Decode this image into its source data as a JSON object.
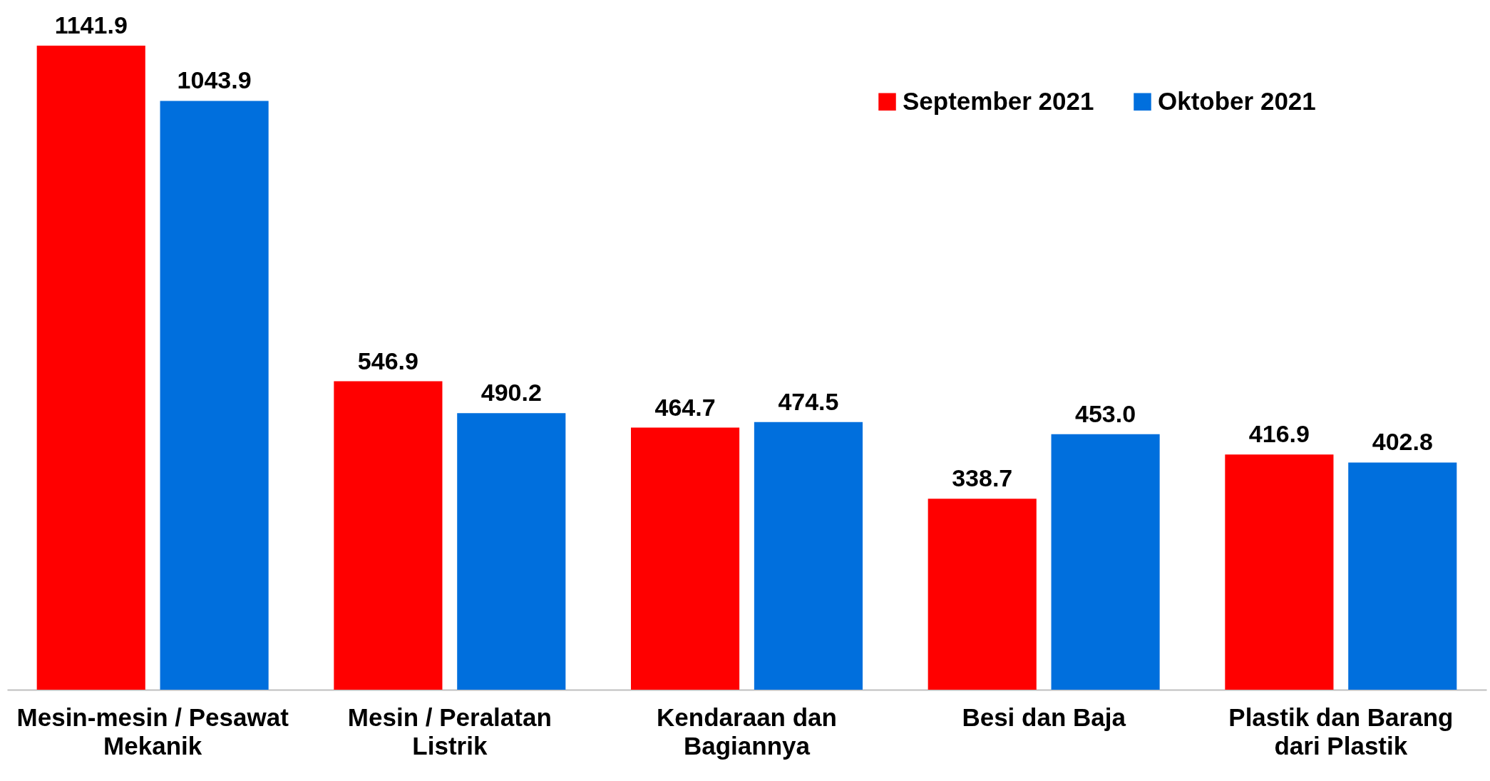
{
  "chart_data": {
    "type": "bar",
    "categories": [
      "Mesin-mesin / Pesawat Mekanik",
      "Mesin / Peralatan Listrik",
      "Kendaraan dan Bagiannya",
      "Besi dan Baja",
      "Plastik dan Barang dari Plastik"
    ],
    "series": [
      {
        "name": "September 2021",
        "color": "#ff0000",
        "values": [
          1141.9,
          546.9,
          464.7,
          338.7,
          416.9
        ],
        "value_labels": [
          "1141.9",
          "546.9",
          "464.7",
          "338.7",
          "416.9"
        ]
      },
      {
        "name": "Oktober 2021",
        "color": "#006fdd",
        "values": [
          1043.9,
          490.2,
          474.5,
          453.0,
          402.8
        ],
        "value_labels": [
          "1043.9",
          "490.2",
          "474.5",
          "453.0",
          "402.8"
        ]
      }
    ],
    "legend": "top right",
    "grid": false
  }
}
